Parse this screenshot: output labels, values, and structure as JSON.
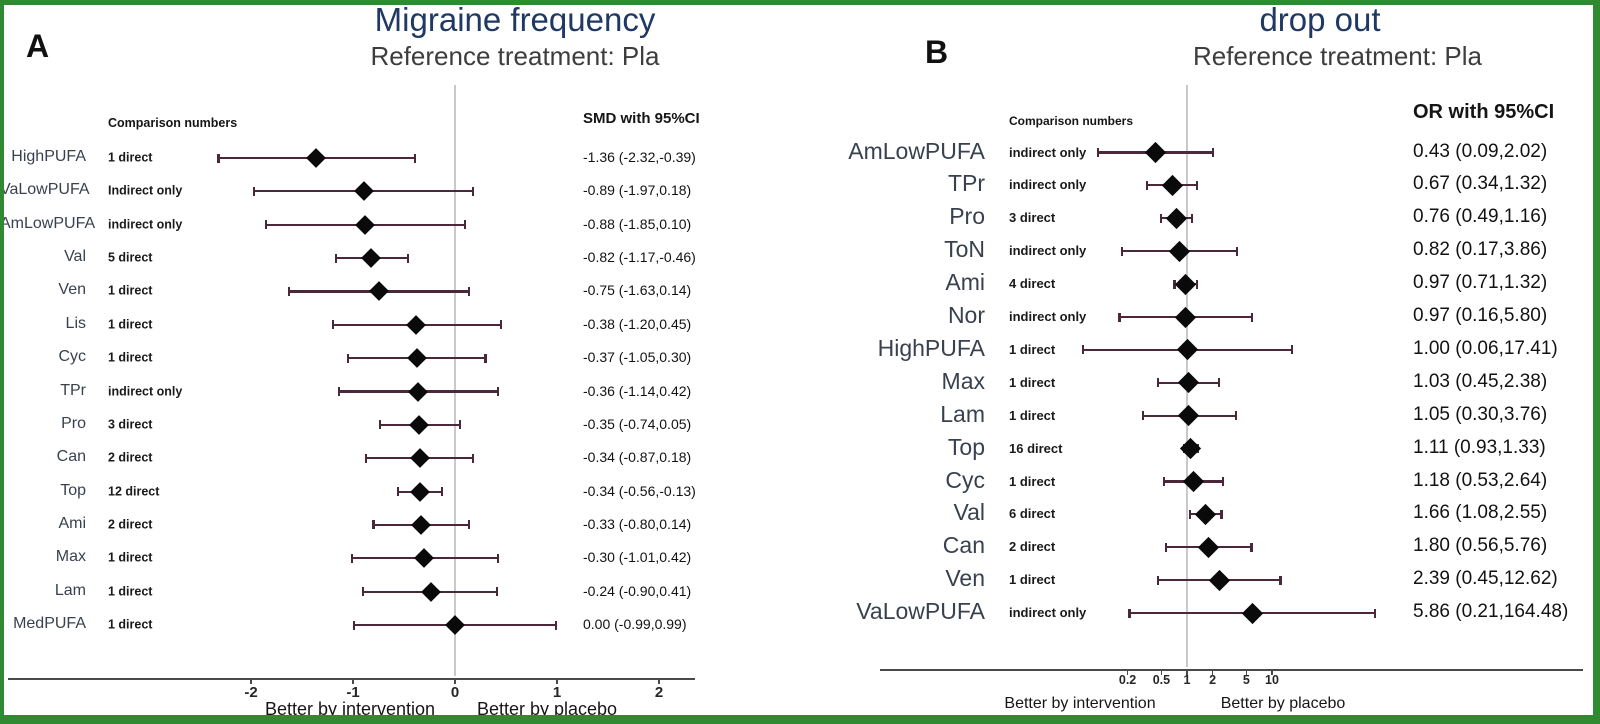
{
  "colors": {
    "frame_green": "#2f8a32",
    "title_navy": "#1f3864",
    "subtitle_gray": "#3d3d3d",
    "bar_plum": "#4b2839",
    "diamond_black": "#0a0a0a",
    "refline_gray": "#c9c9c9",
    "axis_gray": "#4a4a4a",
    "treatment_slate": "#39414f"
  },
  "chart_data": [
    {
      "type": "forest",
      "panel_label": "A",
      "title": "Migraine frequency",
      "subtitle": "Reference treatment: Pla",
      "comparison_header": "Comparison numbers",
      "effect_header": "SMD with 95%CI",
      "axis": {
        "scale": "linear",
        "ref_value": 0,
        "ticks": [
          {
            "v": -2,
            "label": "-2"
          },
          {
            "v": -1,
            "label": "-1"
          },
          {
            "v": 0,
            "label": "0"
          },
          {
            "v": 1,
            "label": "1"
          },
          {
            "v": 2,
            "label": "2"
          }
        ]
      },
      "footer_labels": [
        "Better by intervention",
        "Better by placebo"
      ],
      "rows": [
        {
          "treatment": "HighPUFA",
          "comparison": "1 direct",
          "est": -1.36,
          "lo": -2.32,
          "hi": -0.39,
          "effect": "-1.36 (-2.32,-0.39)"
        },
        {
          "treatment": "VaLowPUFA",
          "comparison": "Indirect only",
          "est": -0.89,
          "lo": -1.97,
          "hi": 0.18,
          "effect": "-0.89 (-1.97,0.18)"
        },
        {
          "treatment": "AmLowPUFA",
          "comparison": "indirect only",
          "est": -0.88,
          "lo": -1.85,
          "hi": 0.1,
          "effect": "-0.88 (-1.85,0.10)"
        },
        {
          "treatment": "Val",
          "comparison": "5 direct",
          "est": -0.82,
          "lo": -1.17,
          "hi": -0.46,
          "effect": "-0.82 (-1.17,-0.46)"
        },
        {
          "treatment": "Ven",
          "comparison": "1 direct",
          "est": -0.75,
          "lo": -1.63,
          "hi": 0.14,
          "effect": "-0.75 (-1.63,0.14)"
        },
        {
          "treatment": "Lis",
          "comparison": "1 direct",
          "est": -0.38,
          "lo": -1.2,
          "hi": 0.45,
          "effect": "-0.38 (-1.20,0.45)"
        },
        {
          "treatment": "Cyc",
          "comparison": "1 direct",
          "est": -0.37,
          "lo": -1.05,
          "hi": 0.3,
          "effect": "-0.37 (-1.05,0.30)"
        },
        {
          "treatment": "TPr",
          "comparison": "indirect only",
          "est": -0.36,
          "lo": -1.14,
          "hi": 0.42,
          "effect": "-0.36 (-1.14,0.42)"
        },
        {
          "treatment": "Pro",
          "comparison": "3 direct",
          "est": -0.35,
          "lo": -0.74,
          "hi": 0.05,
          "effect": "-0.35 (-0.74,0.05)"
        },
        {
          "treatment": "Can",
          "comparison": "2 direct",
          "est": -0.34,
          "lo": -0.87,
          "hi": 0.18,
          "effect": "-0.34 (-0.87,0.18)"
        },
        {
          "treatment": "Top",
          "comparison": "12 direct",
          "est": -0.34,
          "lo": -0.56,
          "hi": -0.13,
          "effect": "-0.34 (-0.56,-0.13)"
        },
        {
          "treatment": "Ami",
          "comparison": "2 direct",
          "est": -0.33,
          "lo": -0.8,
          "hi": 0.14,
          "effect": "-0.33 (-0.80,0.14)"
        },
        {
          "treatment": "Max",
          "comparison": "1 direct",
          "est": -0.3,
          "lo": -1.01,
          "hi": 0.42,
          "effect": "-0.30 (-1.01,0.42)"
        },
        {
          "treatment": "Lam",
          "comparison": "1 direct",
          "est": -0.24,
          "lo": -0.9,
          "hi": 0.41,
          "effect": "-0.24 (-0.90,0.41)"
        },
        {
          "treatment": "MedPUFA",
          "comparison": "1 direct",
          "est": 0.0,
          "lo": -0.99,
          "hi": 0.99,
          "effect": "0.00 (-0.99,0.99)"
        }
      ]
    },
    {
      "type": "forest",
      "panel_label": "B",
      "title": "drop out",
      "subtitle": "Reference treatment: Pla",
      "comparison_header": "Comparison numbers",
      "effect_header": "OR with 95%CI",
      "axis": {
        "scale": "log",
        "ref_value": 1,
        "ticks": [
          {
            "v": 0.2,
            "label": "0.2"
          },
          {
            "v": 0.5,
            "label": "0.5"
          },
          {
            "v": 1,
            "label": "1"
          },
          {
            "v": 2,
            "label": "2"
          },
          {
            "v": 5,
            "label": "5"
          },
          {
            "v": 10,
            "label": "10"
          }
        ]
      },
      "footer_labels": [
        "Better by intervention",
        "Better by placebo"
      ],
      "rows": [
        {
          "treatment": "AmLowPUFA",
          "comparison": "indirect only",
          "est": 0.43,
          "lo": 0.09,
          "hi": 2.02,
          "effect": "0.43 (0.09,2.02)"
        },
        {
          "treatment": "TPr",
          "comparison": "indirect only",
          "est": 0.67,
          "lo": 0.34,
          "hi": 1.32,
          "effect": "0.67 (0.34,1.32)"
        },
        {
          "treatment": "Pro",
          "comparison": "3 direct",
          "est": 0.76,
          "lo": 0.49,
          "hi": 1.16,
          "effect": "0.76 (0.49,1.16)"
        },
        {
          "treatment": "ToN",
          "comparison": "indirect only",
          "est": 0.82,
          "lo": 0.17,
          "hi": 3.86,
          "effect": "0.82 (0.17,3.86)"
        },
        {
          "treatment": "Ami",
          "comparison": "4 direct",
          "est": 0.97,
          "lo": 0.71,
          "hi": 1.32,
          "effect": "0.97 (0.71,1.32)"
        },
        {
          "treatment": "Nor",
          "comparison": "indirect only",
          "est": 0.97,
          "lo": 0.16,
          "hi": 5.8,
          "effect": "0.97 (0.16,5.80)"
        },
        {
          "treatment": "HighPUFA",
          "comparison": "1 direct",
          "est": 1.0,
          "lo": 0.06,
          "hi": 17.41,
          "effect": "1.00 (0.06,17.41)"
        },
        {
          "treatment": "Max",
          "comparison": "1 direct",
          "est": 1.03,
          "lo": 0.45,
          "hi": 2.38,
          "effect": "1.03 (0.45,2.38)"
        },
        {
          "treatment": "Lam",
          "comparison": "1 direct",
          "est": 1.05,
          "lo": 0.3,
          "hi": 3.76,
          "effect": "1.05 (0.30,3.76)"
        },
        {
          "treatment": "Top",
          "comparison": "16 direct",
          "est": 1.11,
          "lo": 0.93,
          "hi": 1.33,
          "effect": "1.11 (0.93,1.33)"
        },
        {
          "treatment": "Cyc",
          "comparison": "1 direct",
          "est": 1.18,
          "lo": 0.53,
          "hi": 2.64,
          "effect": "1.18 (0.53,2.64)"
        },
        {
          "treatment": "Val",
          "comparison": "6 direct",
          "est": 1.66,
          "lo": 1.08,
          "hi": 2.55,
          "effect": "1.66 (1.08,2.55)"
        },
        {
          "treatment": "Can",
          "comparison": "2 direct",
          "est": 1.8,
          "lo": 0.56,
          "hi": 5.76,
          "effect": "1.80 (0.56,5.76)"
        },
        {
          "treatment": "Ven",
          "comparison": "1 direct",
          "est": 2.39,
          "lo": 0.45,
          "hi": 12.62,
          "effect": "2.39 (0.45,12.62)"
        },
        {
          "treatment": "VaLowPUFA",
          "comparison": "indirect only",
          "est": 5.86,
          "lo": 0.21,
          "hi": 164.48,
          "effect": "5.86 (0.21,164.48)"
        }
      ]
    }
  ]
}
